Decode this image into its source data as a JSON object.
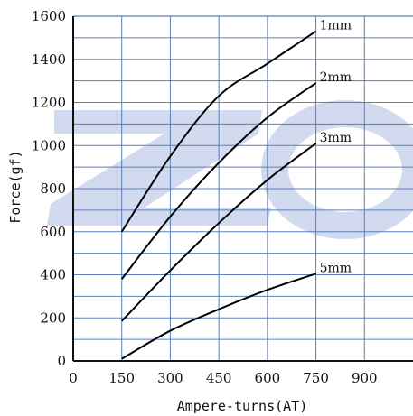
{
  "chart_data": {
    "type": "line",
    "title": "",
    "xlabel": "Ampere-turns(AT)",
    "ylabel": "Force(gf)",
    "xlim": [
      0,
      1050
    ],
    "ylim": [
      0,
      1600
    ],
    "x_ticks": [
      0,
      150,
      300,
      450,
      600,
      750,
      900
    ],
    "y_ticks": [
      0,
      200,
      400,
      600,
      800,
      1000,
      1200,
      1400,
      1600
    ],
    "x_grid": [
      150,
      300,
      450,
      600,
      750,
      900
    ],
    "y_grid": [
      100,
      200,
      300,
      400,
      500,
      600,
      700,
      800,
      900,
      1000,
      1100,
      1200,
      1300,
      1400,
      1500
    ],
    "grid": true,
    "legend": "inline",
    "series": [
      {
        "name": "1mm",
        "x": [
          150,
          300,
          450,
          600,
          750
        ],
        "y": [
          600,
          950,
          1230,
          1380,
          1530
        ]
      },
      {
        "name": "2mm",
        "x": [
          150,
          300,
          450,
          600,
          750
        ],
        "y": [
          380,
          670,
          920,
          1130,
          1290
        ]
      },
      {
        "name": "3mm",
        "x": [
          150,
          300,
          450,
          600,
          750
        ],
        "y": [
          185,
          420,
          640,
          840,
          1010
        ]
      },
      {
        "name": "5mm",
        "x": [
          150,
          300,
          450,
          600,
          750
        ],
        "y": [
          10,
          140,
          240,
          330,
          405
        ]
      }
    ]
  },
  "watermark": {
    "text": "ZO",
    "color": "#c9d3ec"
  },
  "colors": {
    "grid": "#5d7fba",
    "axis": "#111111",
    "line": "#000000"
  }
}
